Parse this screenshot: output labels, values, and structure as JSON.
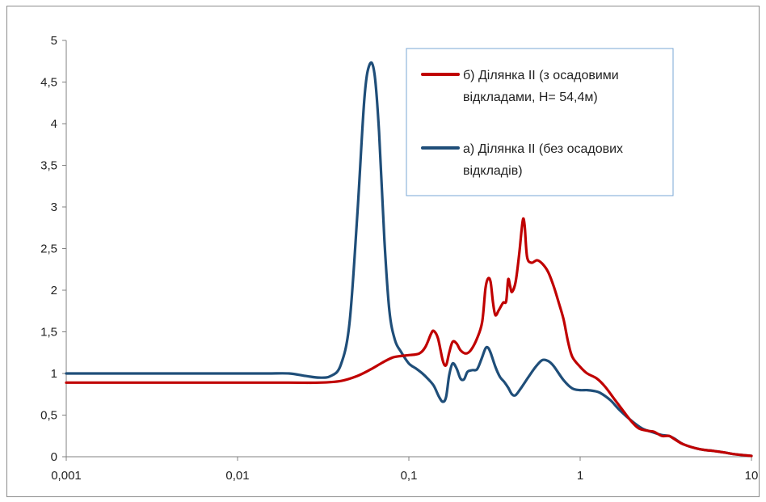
{
  "chart_data": {
    "type": "line",
    "x_scale": "log",
    "xlim": [
      0.001,
      10
    ],
    "ylim": [
      0,
      5
    ],
    "grid": false,
    "legend_position": "top-center",
    "x_tick_labels": [
      "0,001",
      "0,01",
      "0,1",
      "1",
      "10"
    ],
    "y_tick_labels": [
      "0",
      "0,5",
      "1",
      "1,5",
      "2",
      "2,5",
      "3",
      "3,5",
      "4",
      "4,5",
      "5"
    ],
    "legend": [
      {
        "line1": "б) Ділянка II (з осадовими",
        "line2": "відкладами, H= 54,4м)"
      },
      {
        "line1": "а) Ділянка II (без осадових",
        "line2": "відкладів)"
      }
    ],
    "series": [
      {
        "name": "б) Ділянка II (з осадовими відкладами, H= 54,4м)",
        "color": "#c00000",
        "points": [
          [
            0.001,
            0.89
          ],
          [
            0.005,
            0.89
          ],
          [
            0.01,
            0.89
          ],
          [
            0.02,
            0.89
          ],
          [
            0.03,
            0.89
          ],
          [
            0.04,
            0.91
          ],
          [
            0.05,
            0.97
          ],
          [
            0.06,
            1.05
          ],
          [
            0.07,
            1.13
          ],
          [
            0.08,
            1.19
          ],
          [
            0.09,
            1.21
          ],
          [
            0.1,
            1.22
          ],
          [
            0.115,
            1.24
          ],
          [
            0.125,
            1.32
          ],
          [
            0.135,
            1.48
          ],
          [
            0.14,
            1.51
          ],
          [
            0.148,
            1.42
          ],
          [
            0.158,
            1.15
          ],
          [
            0.165,
            1.1
          ],
          [
            0.172,
            1.25
          ],
          [
            0.18,
            1.38
          ],
          [
            0.19,
            1.36
          ],
          [
            0.2,
            1.28
          ],
          [
            0.215,
            1.24
          ],
          [
            0.23,
            1.28
          ],
          [
            0.25,
            1.42
          ],
          [
            0.268,
            1.62
          ],
          [
            0.28,
            2.02
          ],
          [
            0.29,
            2.14
          ],
          [
            0.3,
            2.1
          ],
          [
            0.31,
            1.85
          ],
          [
            0.32,
            1.7
          ],
          [
            0.335,
            1.76
          ],
          [
            0.355,
            1.85
          ],
          [
            0.37,
            1.87
          ],
          [
            0.38,
            2.13
          ],
          [
            0.39,
            2.05
          ],
          [
            0.4,
            1.98
          ],
          [
            0.42,
            2.1
          ],
          [
            0.44,
            2.42
          ],
          [
            0.455,
            2.72
          ],
          [
            0.465,
            2.86
          ],
          [
            0.475,
            2.76
          ],
          [
            0.49,
            2.4
          ],
          [
            0.52,
            2.33
          ],
          [
            0.56,
            2.36
          ],
          [
            0.6,
            2.32
          ],
          [
            0.65,
            2.22
          ],
          [
            0.7,
            2.05
          ],
          [
            0.75,
            1.85
          ],
          [
            0.8,
            1.65
          ],
          [
            0.85,
            1.38
          ],
          [
            0.9,
            1.2
          ],
          [
            1.0,
            1.08
          ],
          [
            1.1,
            1.0
          ],
          [
            1.25,
            0.94
          ],
          [
            1.4,
            0.84
          ],
          [
            1.6,
            0.68
          ],
          [
            1.8,
            0.54
          ],
          [
            2.0,
            0.42
          ],
          [
            2.2,
            0.34
          ],
          [
            2.5,
            0.31
          ],
          [
            2.7,
            0.3
          ],
          [
            3.0,
            0.25
          ],
          [
            3.3,
            0.25
          ],
          [
            3.5,
            0.22
          ],
          [
            4.0,
            0.15
          ],
          [
            5.0,
            0.09
          ],
          [
            6.0,
            0.07
          ],
          [
            7.0,
            0.05
          ],
          [
            8.0,
            0.03
          ],
          [
            10.0,
            0.01
          ]
        ]
      },
      {
        "name": "а) Ділянка II (без осадових відкладів)",
        "color": "#1f4e79",
        "points": [
          [
            0.001,
            1.0
          ],
          [
            0.005,
            1.0
          ],
          [
            0.01,
            1.0
          ],
          [
            0.015,
            1.0
          ],
          [
            0.02,
            1.0
          ],
          [
            0.025,
            0.97
          ],
          [
            0.03,
            0.95
          ],
          [
            0.035,
            0.97
          ],
          [
            0.04,
            1.1
          ],
          [
            0.045,
            1.6
          ],
          [
            0.05,
            2.9
          ],
          [
            0.055,
            4.3
          ],
          [
            0.059,
            4.71
          ],
          [
            0.063,
            4.6
          ],
          [
            0.067,
            3.9
          ],
          [
            0.072,
            2.6
          ],
          [
            0.077,
            1.75
          ],
          [
            0.083,
            1.4
          ],
          [
            0.09,
            1.26
          ],
          [
            0.1,
            1.12
          ],
          [
            0.11,
            1.06
          ],
          [
            0.12,
            1.0
          ],
          [
            0.13,
            0.93
          ],
          [
            0.14,
            0.85
          ],
          [
            0.15,
            0.72
          ],
          [
            0.158,
            0.66
          ],
          [
            0.165,
            0.72
          ],
          [
            0.172,
            0.98
          ],
          [
            0.18,
            1.12
          ],
          [
            0.19,
            1.06
          ],
          [
            0.2,
            0.94
          ],
          [
            0.21,
            0.93
          ],
          [
            0.22,
            1.02
          ],
          [
            0.235,
            1.04
          ],
          [
            0.25,
            1.05
          ],
          [
            0.265,
            1.17
          ],
          [
            0.28,
            1.3
          ],
          [
            0.29,
            1.31
          ],
          [
            0.3,
            1.25
          ],
          [
            0.32,
            1.08
          ],
          [
            0.34,
            0.96
          ],
          [
            0.36,
            0.9
          ],
          [
            0.38,
            0.83
          ],
          [
            0.4,
            0.75
          ],
          [
            0.42,
            0.74
          ],
          [
            0.45,
            0.82
          ],
          [
            0.5,
            0.96
          ],
          [
            0.55,
            1.08
          ],
          [
            0.6,
            1.16
          ],
          [
            0.65,
            1.15
          ],
          [
            0.7,
            1.09
          ],
          [
            0.8,
            0.92
          ],
          [
            0.9,
            0.82
          ],
          [
            1.0,
            0.8
          ],
          [
            1.1,
            0.8
          ],
          [
            1.2,
            0.79
          ],
          [
            1.3,
            0.77
          ],
          [
            1.5,
            0.68
          ],
          [
            1.7,
            0.56
          ],
          [
            2.0,
            0.43
          ],
          [
            2.3,
            0.34
          ],
          [
            2.6,
            0.3
          ],
          [
            3.0,
            0.26
          ],
          [
            3.3,
            0.25
          ],
          [
            3.6,
            0.21
          ],
          [
            4.0,
            0.15
          ],
          [
            5.0,
            0.09
          ],
          [
            6.0,
            0.07
          ],
          [
            7.0,
            0.05
          ],
          [
            8.0,
            0.03
          ],
          [
            10.0,
            0.01
          ]
        ]
      }
    ]
  }
}
